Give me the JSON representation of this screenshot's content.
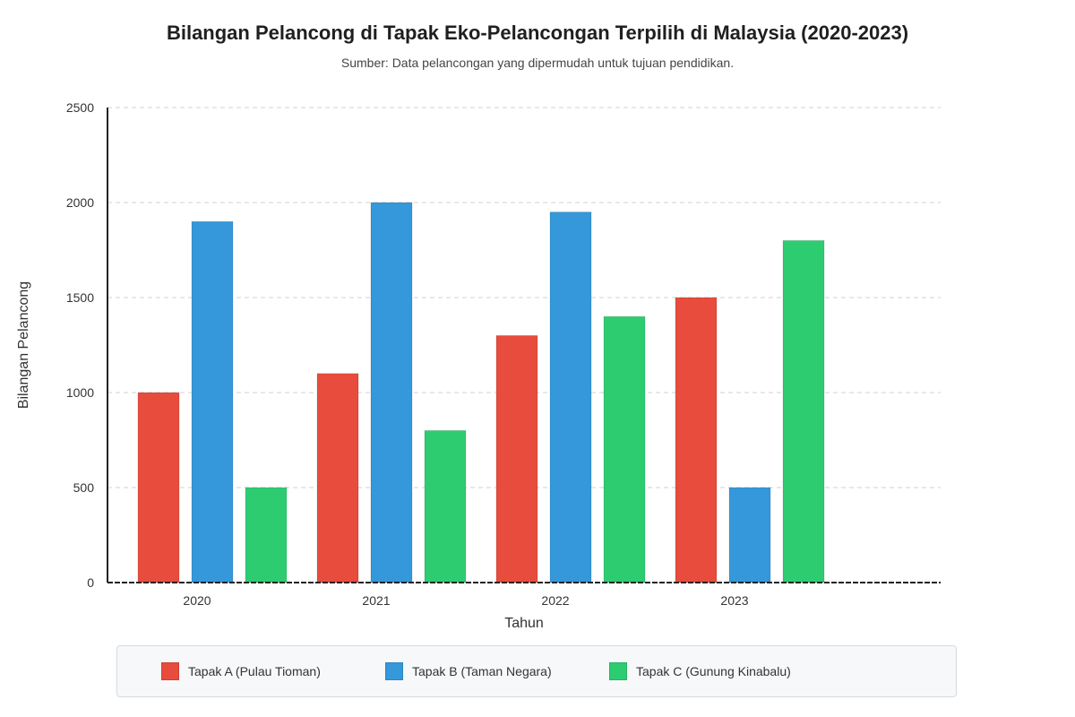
{
  "chart_data": {
    "type": "bar",
    "title": "Bilangan Pelancong di Tapak Eko-Pelancongan Terpilih di Malaysia (2020-2023)",
    "subtitle": "Sumber: Data pelancongan yang dipermudah untuk tujuan pendidikan.",
    "xlabel": "Tahun",
    "ylabel": "Bilangan Pelancong",
    "categories": [
      "2020",
      "2021",
      "2022",
      "2023"
    ],
    "ylim": [
      0,
      2500
    ],
    "yticks": [
      0,
      500,
      1000,
      1500,
      2000,
      2500
    ],
    "grid": true,
    "legend_position": "bottom",
    "series": [
      {
        "name": "Tapak A (Pulau Tioman)",
        "color": "#e74c3c",
        "values": [
          1000,
          1100,
          1300,
          1500
        ]
      },
      {
        "name": "Tapak B (Taman Negara)",
        "color": "#3498db",
        "values": [
          1900,
          2000,
          1950,
          500
        ]
      },
      {
        "name": "Tapak C (Gunung Kinabalu)",
        "color": "#2ecc71",
        "values": [
          500,
          800,
          1400,
          1800
        ]
      }
    ]
  }
}
